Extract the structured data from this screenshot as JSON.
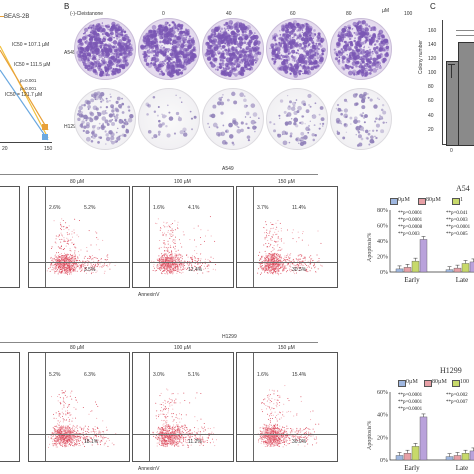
{
  "panelB": {
    "letter": "B",
    "dose_label": "(-)-Cleistanone",
    "unit": "µM",
    "doses": [
      "0",
      "40",
      "60",
      "80",
      "100"
    ],
    "row_labels": [
      "A549",
      "H1299"
    ]
  },
  "panelA": {
    "legend": "BEAS-2B",
    "ic50_lines": [
      "IC50 = 107.1 µM",
      "IC50 = 111.5 µM",
      "IC50 = 121.7 µM"
    ],
    "pvals": [
      "p=0.001",
      "p=0.001"
    ],
    "xticks": [
      "20",
      "150"
    ]
  },
  "panelC": {
    "letter": "C",
    "ylabel": "Colony number",
    "yticks": [
      "160",
      "140",
      "120",
      "100",
      "80",
      "60",
      "40",
      "20"
    ],
    "xtick": "0"
  },
  "chart_data": [
    {
      "type": "bar",
      "title": "",
      "categories": [
        "0"
      ],
      "values": [
        117
      ],
      "ylabel": "Colony number",
      "ylim": [
        0,
        175
      ]
    },
    {
      "type": "bar",
      "title": "A54",
      "ylabel": "Apoptosis%",
      "categories": [
        "Early",
        "Late"
      ],
      "series": [
        {
          "name": "0µM",
          "values": [
            4,
            3
          ]
        },
        {
          "name": "80µM",
          "values": [
            6,
            5
          ]
        },
        {
          "name": "1",
          "values": [
            14,
            11
          ]
        },
        {
          "name": "",
          "values": [
            42,
            13
          ]
        }
      ],
      "yticks": [
        "80%",
        "60%",
        "40%",
        "20%",
        "0%"
      ],
      "ylim": [
        0,
        80
      ]
    },
    {
      "type": "bar",
      "title": "H1299",
      "ylabel": "Apoptosis%",
      "categories": [
        "Early",
        "Late"
      ],
      "series": [
        {
          "name": "0µM",
          "values": [
            4,
            3
          ]
        },
        {
          "name": "80µM",
          "values": [
            6,
            4
          ]
        },
        {
          "name": "100",
          "values": [
            12,
            6
          ]
        },
        {
          "name": "",
          "values": [
            38,
            8
          ]
        }
      ],
      "yticks": [
        "60%",
        "40%",
        "20%",
        "0%"
      ],
      "ylim": [
        0,
        60
      ]
    }
  ],
  "flowA549": {
    "header": "A549",
    "conditions": [
      "80 µM",
      "100 µM",
      "150 µM"
    ],
    "quadrants": [
      [
        "2.6%",
        "5.2%",
        "3.5%"
      ],
      [
        "1.6%",
        "4.1%",
        "12.4%"
      ],
      [
        "3.7%",
        "11.4%",
        "30.5%"
      ]
    ],
    "xlabel": "AnnexinV"
  },
  "flowH1299": {
    "header": "H1299",
    "conditions": [
      "80 µM",
      "100 µM",
      "150 µM"
    ],
    "quadrants": [
      [
        "5.2%",
        "6.3%",
        "18.1%"
      ],
      [
        "3.0%",
        "5.1%",
        "11.2%"
      ],
      [
        "1.6%",
        "15.4%",
        "30.9%"
      ]
    ],
    "xlabel": "AnnexinV"
  },
  "a549chart": {
    "title": "A54",
    "legend": [
      "0µM",
      "80µM",
      "1"
    ],
    "pvals": [
      "p=0.0001",
      "p=0.0001",
      "p=0.0008",
      "p=0.003",
      "p=0.041",
      "p=0.003",
      "p=0.0001",
      "p=0.085"
    ],
    "ylabel": "Apoptosis%",
    "yticks": [
      "80%",
      "60%",
      "40%",
      "20%",
      "0%"
    ],
    "xcats": [
      "Early",
      "Late"
    ]
  },
  "h1299chart": {
    "title": "H1299",
    "legend": [
      "0µM",
      "80µM",
      "100"
    ],
    "pvals": [
      "p=0.0001",
      "p=0.0001",
      "p=0.0001",
      "p=0.002",
      "p=0.007"
    ],
    "ylabel": "Apoptosis%",
    "yticks": [
      "60%",
      "40%",
      "20%",
      "0%"
    ],
    "xcats": [
      "Early",
      "Late"
    ]
  },
  "colors": {
    "s0": "#9fb7e0",
    "s1": "#e7a0a6",
    "s2": "#c7d96a",
    "s3": "#b9a2db",
    "colony": "#7a56b4"
  }
}
